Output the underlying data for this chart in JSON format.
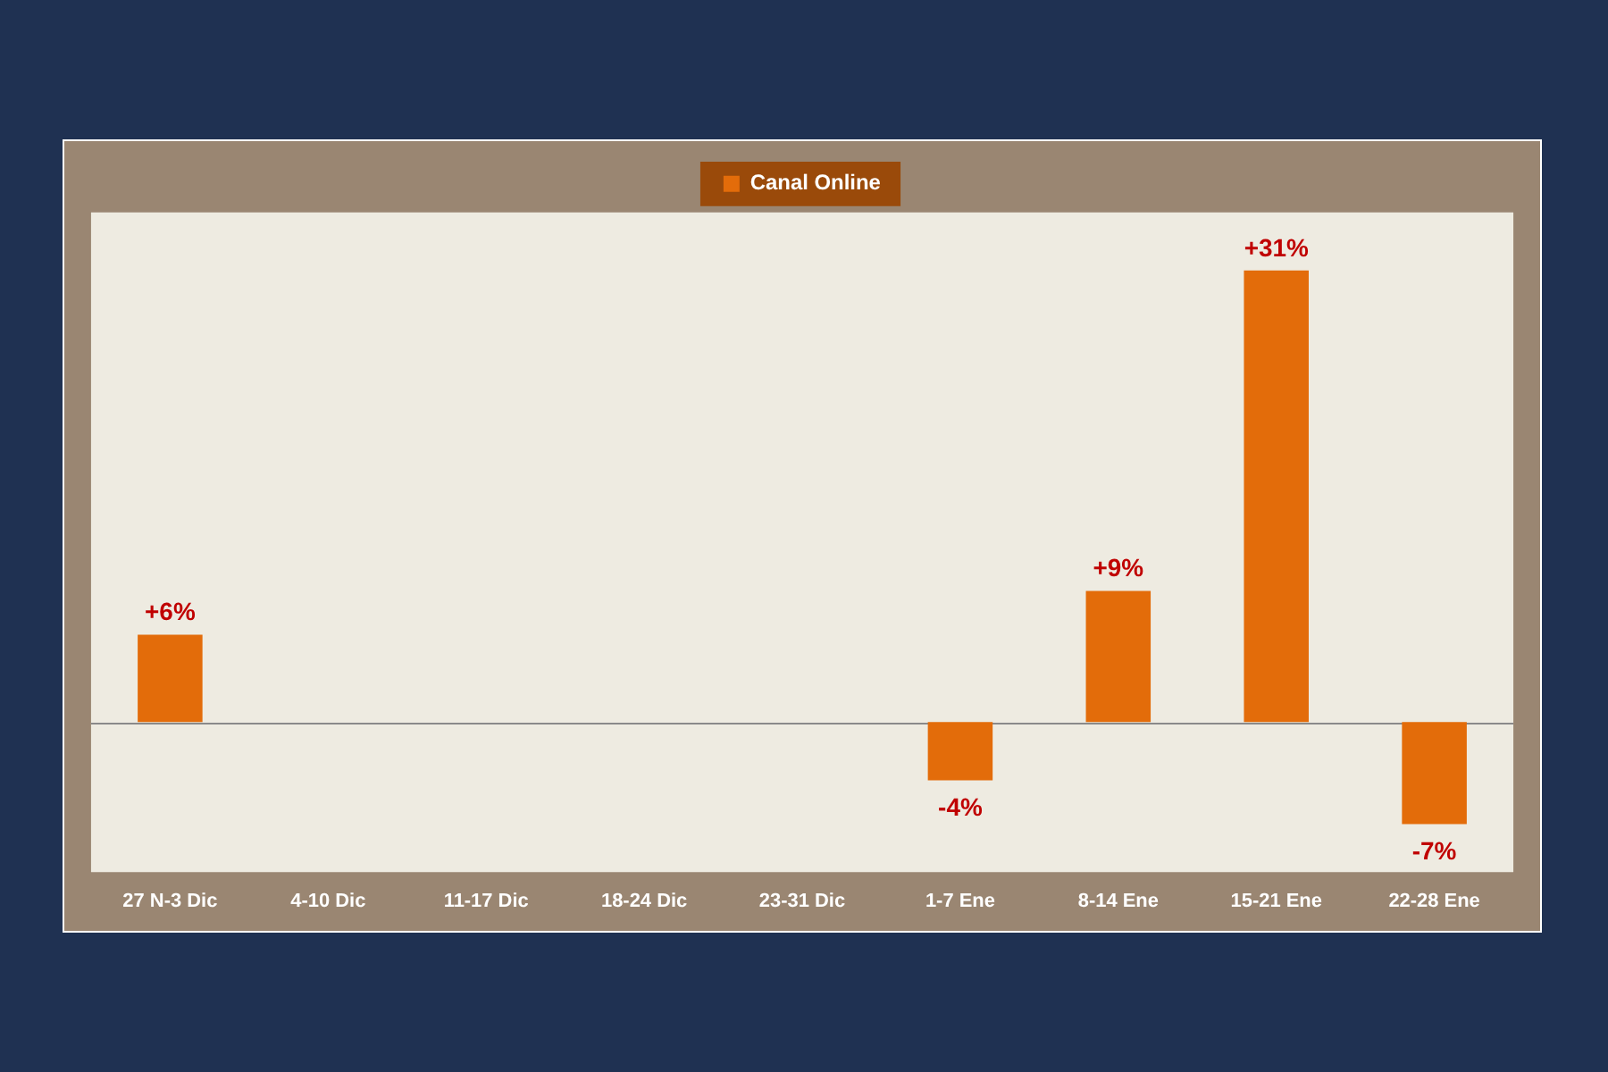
{
  "chart_data": {
    "type": "bar",
    "categories": [
      "27 N-3 Dic",
      "4-10 Dic",
      "11-17 Dic",
      "18-24 Dic",
      "23-31 Dic",
      "1-7 Ene",
      "8-14 Ene",
      "15-21 Ene",
      "22-28 Ene"
    ],
    "series": [
      {
        "name": "Canal Online",
        "color": "#e36c0a",
        "values": [
          6,
          null,
          null,
          null,
          null,
          -4,
          9,
          31,
          -7
        ],
        "value_labels": [
          "+6%",
          null,
          null,
          null,
          null,
          "-4%",
          "+9%",
          "+31%",
          "-7%"
        ]
      }
    ],
    "ylim": [
      -10.3,
      35
    ],
    "legend": "top",
    "grid": false,
    "tick_labels": "x"
  }
}
